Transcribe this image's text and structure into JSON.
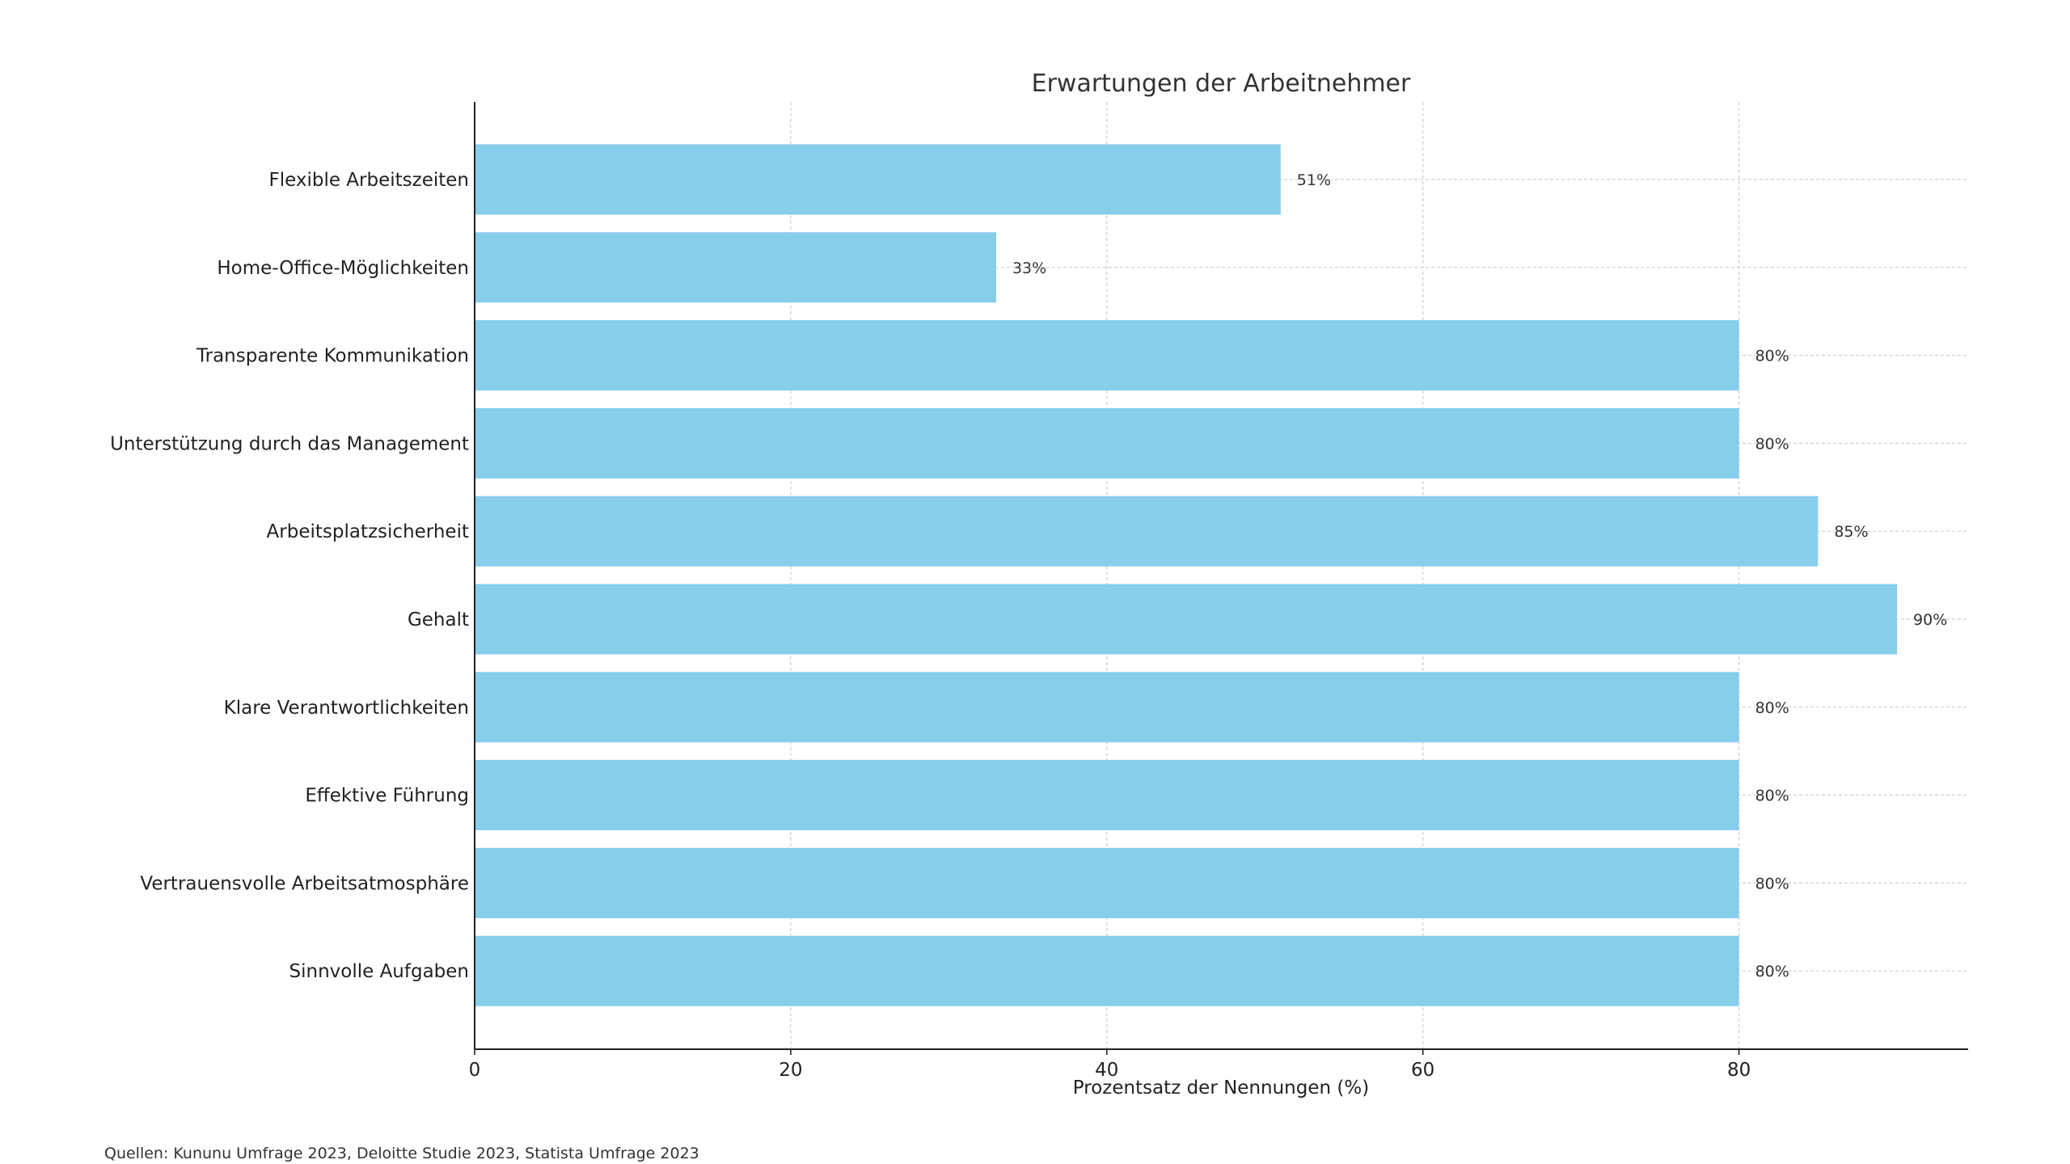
{
  "chart_data": {
    "type": "bar",
    "orientation": "horizontal",
    "title": "Erwartungen der Arbeitnehmer",
    "xlabel": "Prozentsatz der Nennungen (%)",
    "ylabel": "",
    "xlim": [
      0,
      94.5
    ],
    "xticks": [
      0,
      20,
      40,
      60,
      80
    ],
    "grid": true,
    "color": "#87CEEB",
    "categories": [
      "Flexible Arbeitszeiten",
      "Home-Office-Möglichkeiten",
      "Transparente Kommunikation",
      "Unterstützung durch das Management",
      "Arbeitsplatzsicherheit",
      "Gehalt",
      "Klare Verantwortlichkeiten",
      "Effektive Führung",
      "Vertrauensvolle Arbeitsatmosphäre",
      "Sinnvolle Aufgaben"
    ],
    "values": [
      51,
      33,
      80,
      80,
      85,
      90,
      80,
      80,
      80,
      80
    ],
    "value_labels": [
      "51%",
      "33%",
      "80%",
      "80%",
      "85%",
      "90%",
      "80%",
      "80%",
      "80%",
      "80%"
    ]
  },
  "source_note": "Quellen: Kununu Umfrage 2023, Deloitte Studie 2023, Statista Umfrage 2023"
}
